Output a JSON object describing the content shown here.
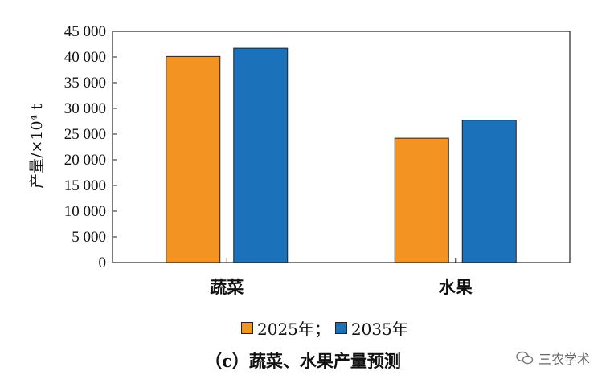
{
  "chart_data": {
    "type": "bar",
    "categories": [
      "蔬菜",
      "水果"
    ],
    "series": [
      {
        "name": "2025年",
        "values": [
          40100,
          24200
        ],
        "color": "#f39322"
      },
      {
        "name": "2035年",
        "values": [
          41700,
          27700
        ],
        "color": "#1b72ba"
      }
    ],
    "ylabel": "产量/×10⁴ t",
    "ylim": [
      0,
      45000
    ],
    "yticks": [
      0,
      5000,
      10000,
      15000,
      20000,
      25000,
      30000,
      35000,
      40000,
      45000
    ],
    "ytick_labels": [
      "0",
      "5 000",
      "10 000",
      "15 000",
      "20 000",
      "25 000",
      "30 000",
      "35 000",
      "40 000",
      "45 000"
    ],
    "grid": false,
    "legend_position": "bottom"
  },
  "legend": {
    "item1": "2025年；",
    "item2": "2035年"
  },
  "caption": "（c）蔬菜、水果产量预测",
  "watermark": "三农学术"
}
